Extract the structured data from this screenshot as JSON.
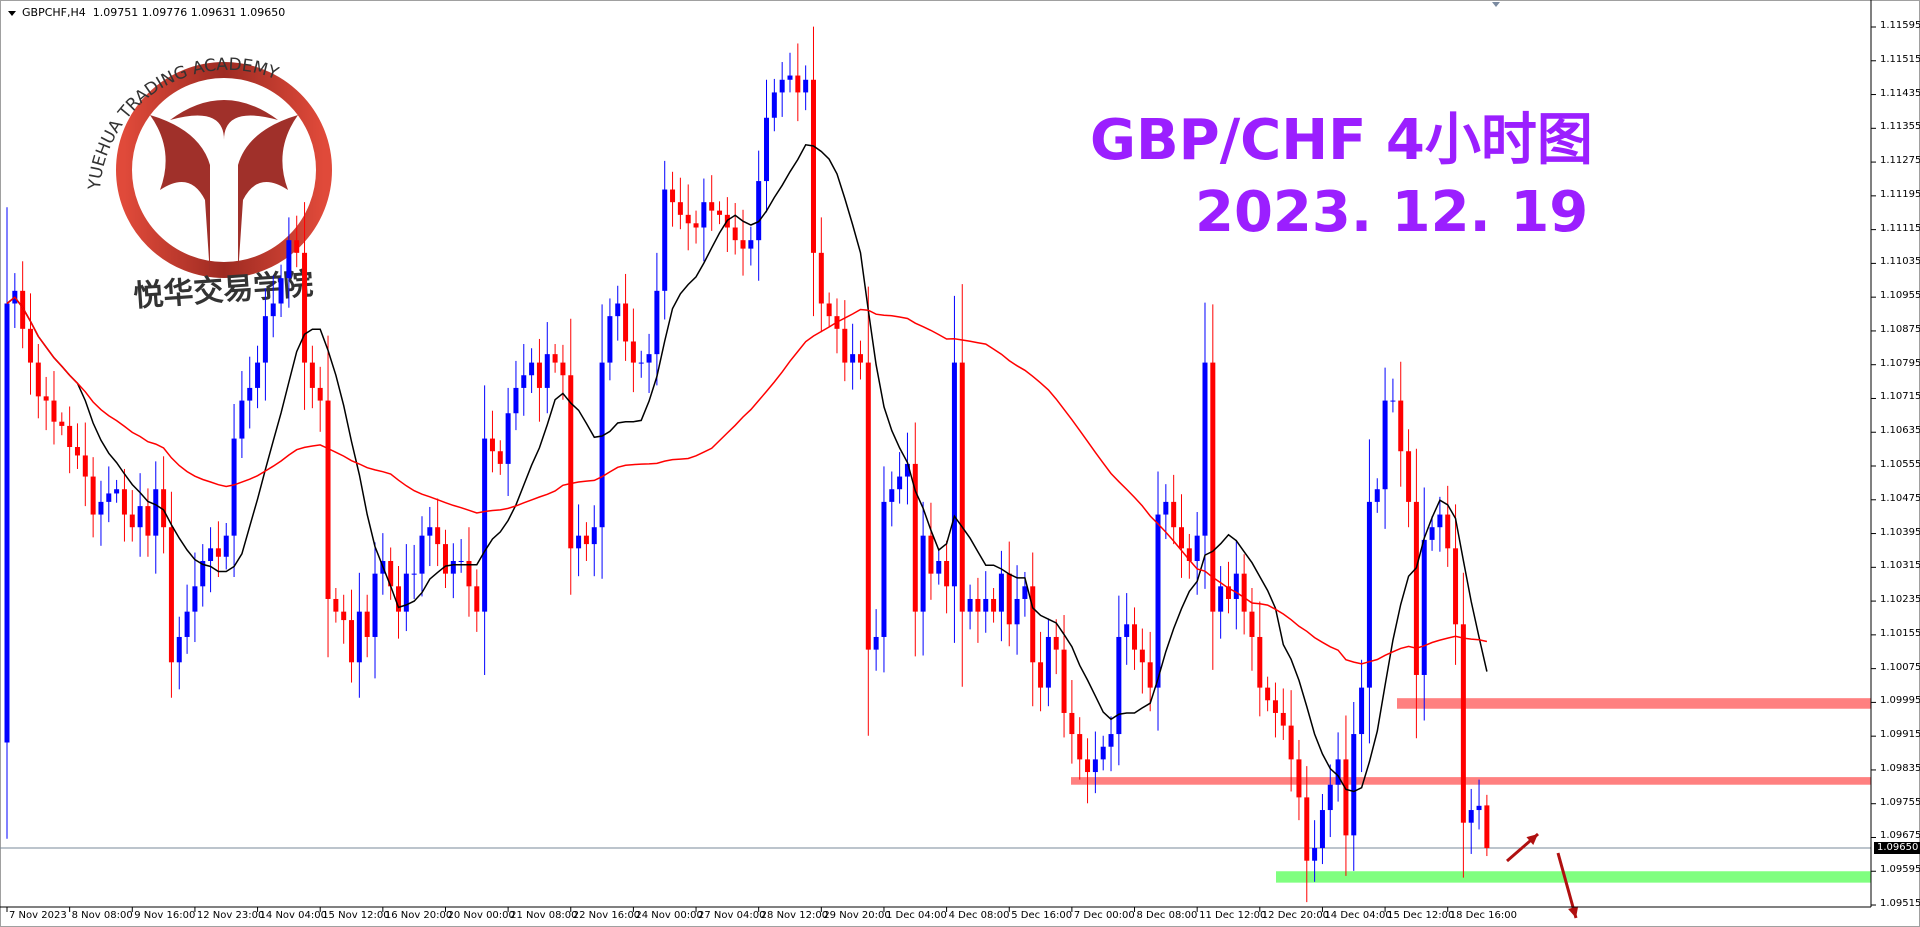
{
  "header": {
    "symbol": "GBPCHF,H4",
    "ohlc_text": "1.09751 1.09776 1.09631 1.09650"
  },
  "titles": {
    "line1": "GBP/CHF 4小时图",
    "line2": "2023. 12. 19"
  },
  "logo": {
    "top_text": "YUEHUA TRADING ACADEMY",
    "bottom_text": "悦华交易学院",
    "color": "#c0392b"
  },
  "price_axis": [
    "1.11595",
    "1.11515",
    "1.11435",
    "1.11355",
    "1.11275",
    "1.11195",
    "1.11115",
    "1.11035",
    "1.10955",
    "1.10875",
    "1.10795",
    "1.10715",
    "1.10635",
    "1.10555",
    "1.10475",
    "1.10395",
    "1.10315",
    "1.10235",
    "1.10155",
    "1.10075",
    "1.09995",
    "1.09915",
    "1.09835",
    "1.09755",
    "1.09675",
    "1.09595",
    "1.09515"
  ],
  "current_price_label": "1.09650",
  "time_axis": [
    "7 Nov 2023",
    "8 Nov 08:00",
    "9 Nov 16:00",
    "12 Nov 23:00",
    "14 Nov 04:00",
    "15 Nov 12:00",
    "16 Nov 20:00",
    "20 Nov 00:00",
    "21 Nov 08:00",
    "22 Nov 16:00",
    "24 Nov 00:00",
    "27 Nov 04:00",
    "28 Nov 12:00",
    "29 Nov 20:00",
    "1 Dec 04:00",
    "4 Dec 08:00",
    "5 Dec 16:00",
    "7 Dec 00:00",
    "8 Dec 08:00",
    "11 Dec 12:00",
    "12 Dec 20:00",
    "14 Dec 04:00",
    "15 Dec 12:00",
    "18 Dec 16:00"
  ],
  "chart_data": {
    "type": "candlestick",
    "ylim": [
      1.09515,
      1.11595
    ],
    "bull_color": "#0000ff",
    "bear_color": "#ff0000",
    "first_open": 1.099,
    "close": [
      1.1094,
      1.1097,
      1.1088,
      1.108,
      1.1072,
      1.1071,
      1.1066,
      1.1065,
      1.106,
      1.1058,
      1.1053,
      1.1044,
      1.1047,
      1.1049,
      1.105,
      1.1044,
      1.1041,
      1.1046,
      1.1039,
      1.105,
      1.1041,
      1.1009,
      1.1015,
      1.1021,
      1.1027,
      1.1033,
      1.1036,
      1.1034,
      1.1039,
      1.1062,
      1.1071,
      1.1074,
      1.108,
      1.1091,
      1.1094,
      1.11,
      1.1109,
      1.1106,
      1.108,
      1.1074,
      1.1071,
      1.1024,
      1.1021,
      1.1019,
      1.1009,
      1.1021,
      1.1015,
      1.103,
      1.1033,
      1.1027,
      1.1021,
      1.103,
      1.103,
      1.1039,
      1.1041,
      1.1037,
      1.103,
      1.1033,
      1.1033,
      1.1027,
      1.1021,
      1.1062,
      1.1059,
      1.1056,
      1.1068,
      1.1074,
      1.1077,
      1.108,
      1.1074,
      1.1082,
      1.108,
      1.1077,
      1.1036,
      1.1039,
      1.1037,
      1.1041,
      1.108,
      1.1091,
      1.1094,
      1.1085,
      1.108,
      1.108,
      1.1082,
      1.1097,
      1.1121,
      1.1118,
      1.1115,
      1.1113,
      1.1112,
      1.1118,
      1.1116,
      1.1115,
      1.1112,
      1.1109,
      1.1107,
      1.1109,
      1.1123,
      1.1138,
      1.1144,
      1.1147,
      1.1148,
      1.1144,
      1.1147,
      1.1106,
      1.1094,
      1.1091,
      1.1088,
      1.108,
      1.1082,
      1.108,
      1.1012,
      1.1015,
      1.1047,
      1.105,
      1.1053,
      1.1056,
      1.1021,
      1.1039,
      1.103,
      1.1033,
      1.1027,
      1.108,
      1.1021,
      1.1024,
      1.1021,
      1.1024,
      1.1021,
      1.103,
      1.1018,
      1.1024,
      1.1027,
      1.1009,
      1.1003,
      1.1015,
      1.1012,
      1.0997,
      1.0992,
      1.0986,
      1.0983,
      1.0986,
      1.0989,
      1.0992,
      1.1015,
      1.1018,
      1.1012,
      1.1009,
      1.1003,
      1.1044,
      1.1047,
      1.1041,
      1.1036,
      1.1033,
      1.1039,
      1.108,
      1.1021,
      1.1027,
      1.1024,
      1.103,
      1.1021,
      1.1015,
      1.1003,
      1.1,
      1.0997,
      1.0994,
      1.0986,
      1.0977,
      1.0962,
      1.0965,
      1.0974,
      1.098,
      1.0986,
      1.0968,
      1.0992,
      1.1003,
      1.1047,
      1.105,
      1.1071,
      1.1071,
      1.1059,
      1.1047,
      1.1006,
      1.1038,
      1.1041,
      1.1044,
      1.1036,
      1.1018,
      1.0971,
      1.0974,
      1.0975,
      1.0965
    ],
    "last_bar": {
      "open": 1.09751,
      "high": 1.09776,
      "low": 1.09631,
      "close": 1.0965
    },
    "current_price": 1.0965,
    "moving_averages": [
      {
        "color": "#000000"
      },
      {
        "color": "#ff0000"
      }
    ],
    "zones": [
      {
        "from": 1.0998,
        "to": 1.10005,
        "color": "#ff8080"
      },
      {
        "from": 1.098,
        "to": 1.09818,
        "color": "#ff8080"
      },
      {
        "from": 1.09568,
        "to": 1.09595,
        "color": "#80ff80"
      }
    ],
    "arrows": [
      {
        "direction": "up",
        "color": "#b01010"
      },
      {
        "direction": "down",
        "color": "#b01010"
      }
    ]
  }
}
